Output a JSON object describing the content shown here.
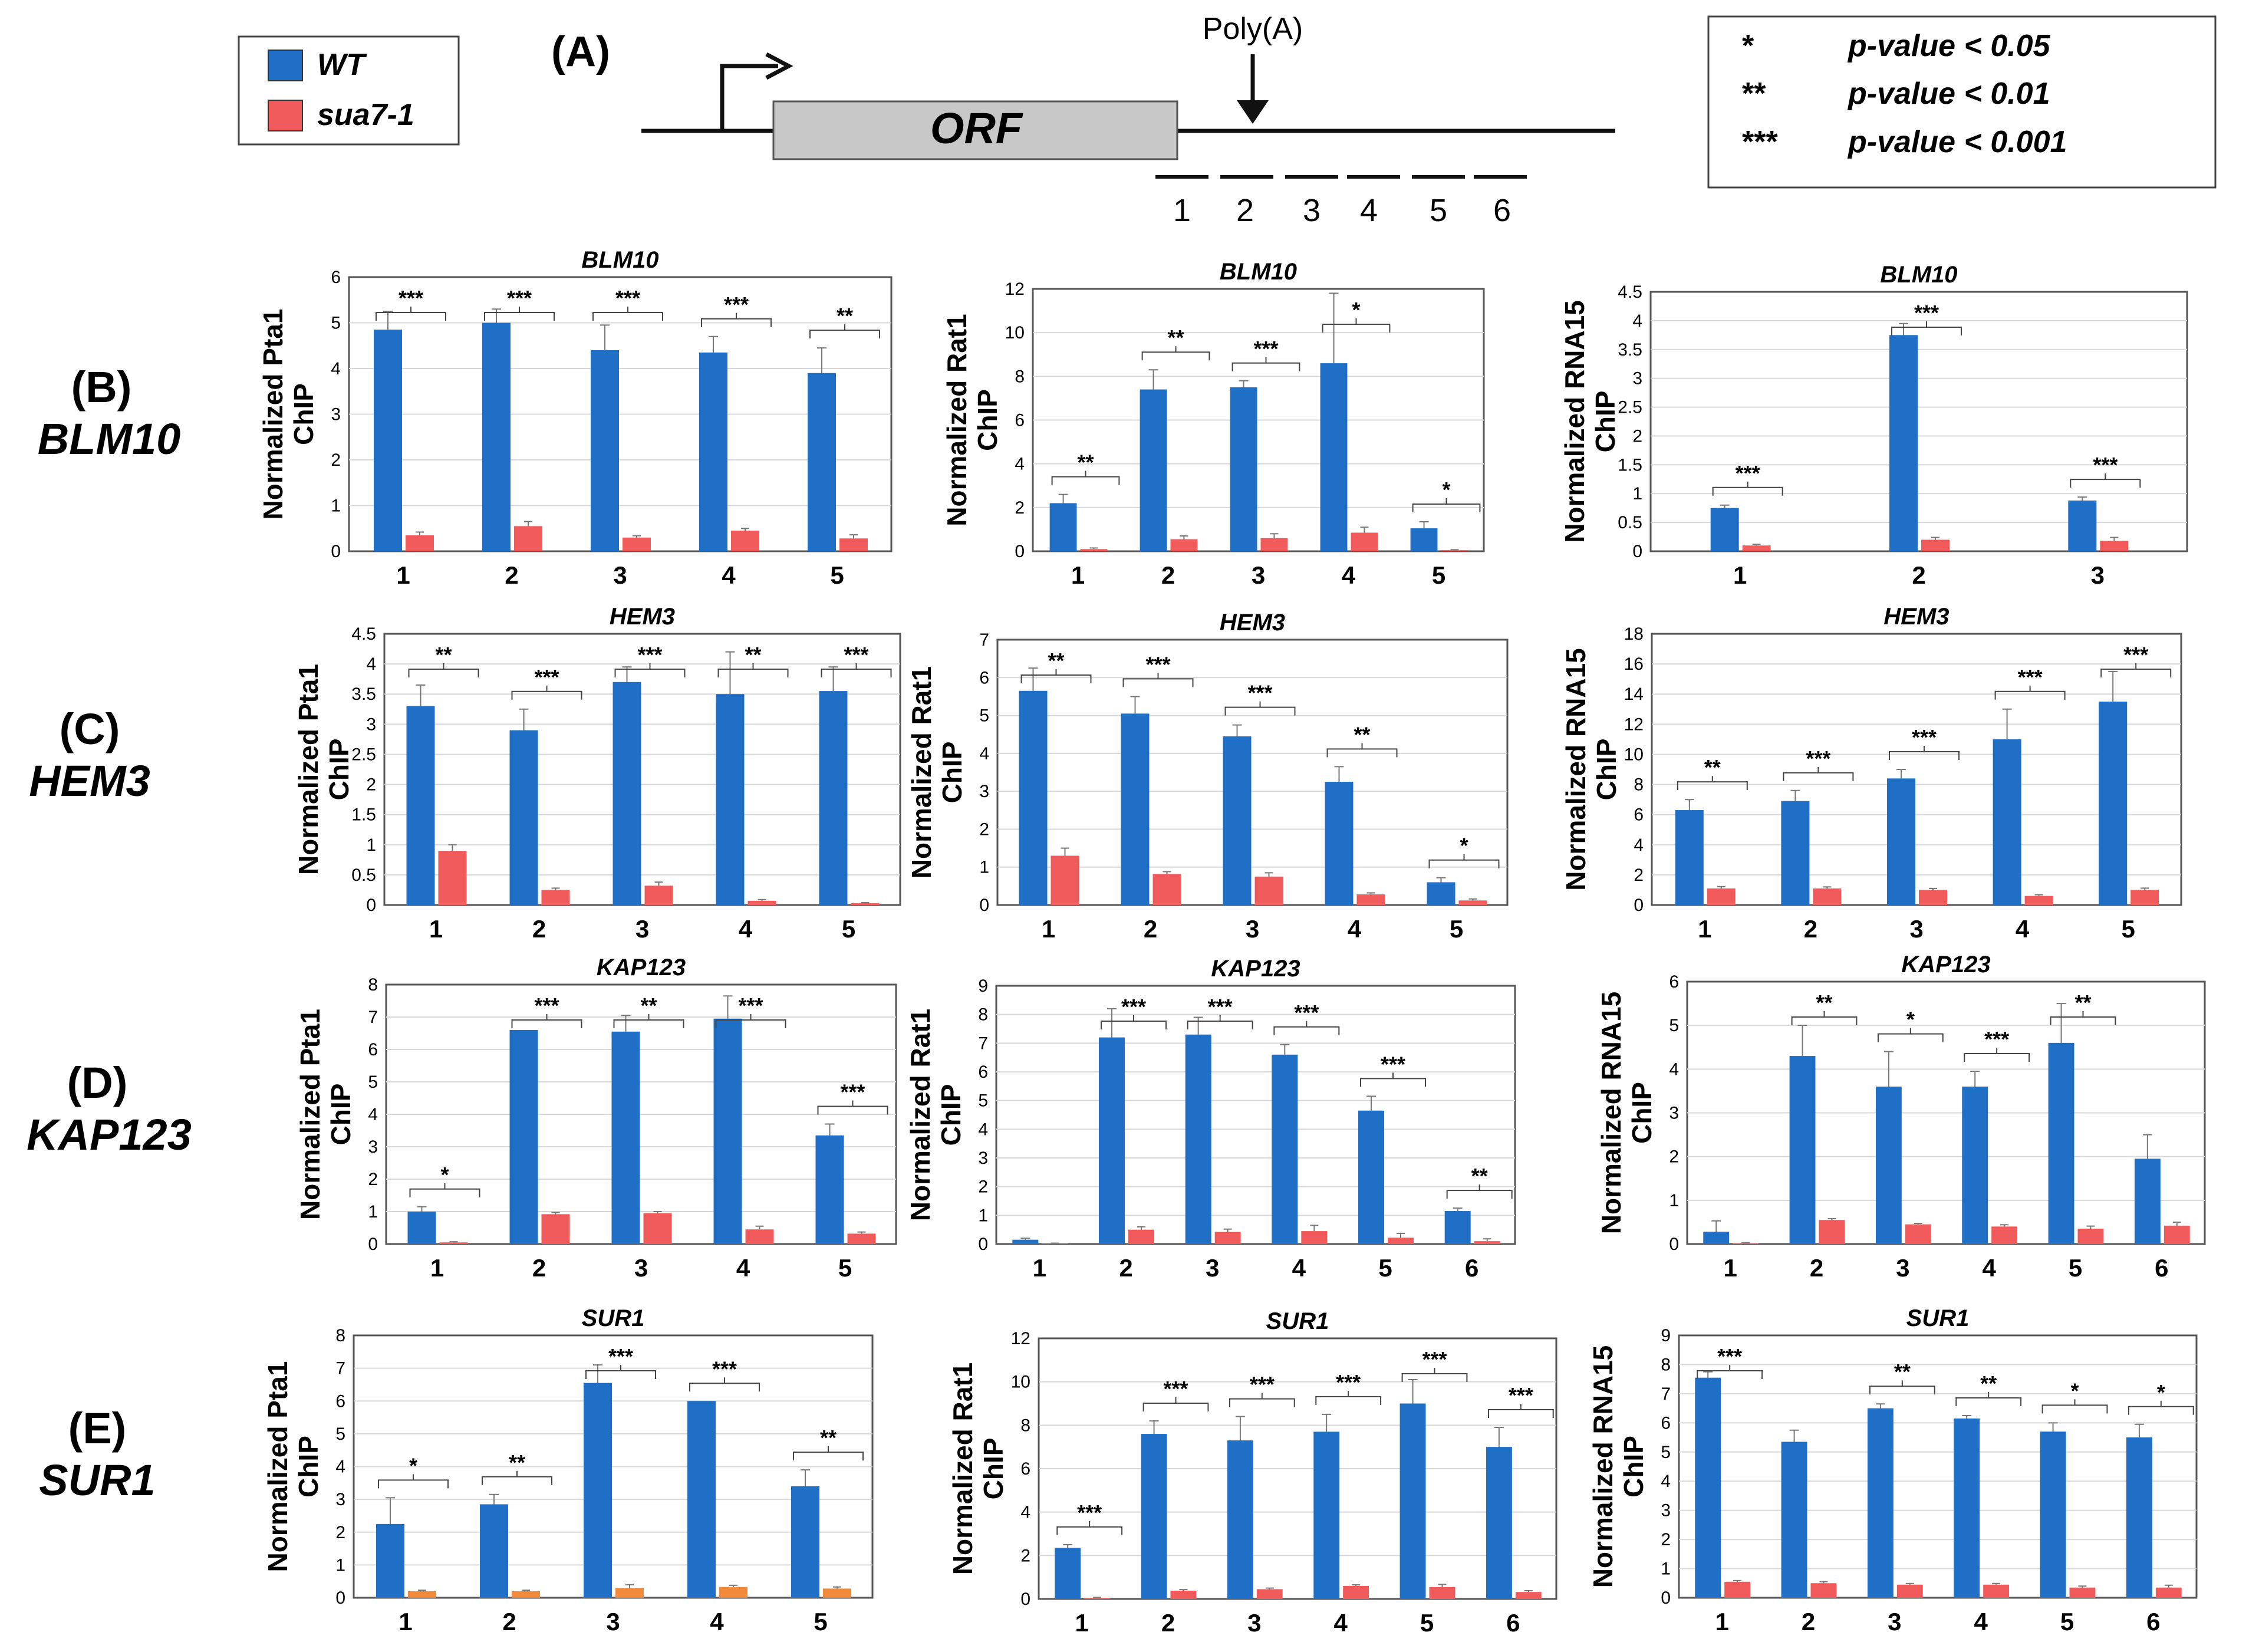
{
  "figure": {
    "panel_a_label": "(A)",
    "orf_label": "ORF",
    "polya_label": "Poly(A)",
    "regions": [
      "1",
      "2",
      "3",
      "4",
      "5",
      "6"
    ]
  },
  "legend": {
    "items": [
      {
        "label": "WT",
        "color": "#1f6fc6"
      },
      {
        "label": "sua7-1",
        "color": "#f05a5a"
      }
    ]
  },
  "pvalue_key": {
    "rows": [
      {
        "stars": "*",
        "text": "p-value < 0.05"
      },
      {
        "stars": "**",
        "text": "p-value < 0.01"
      },
      {
        "stars": "***",
        "text": "p-value < 0.001"
      }
    ]
  },
  "rows": [
    {
      "panel": "(B)",
      "gene": "BLM10"
    },
    {
      "panel": "(C)",
      "gene": "HEM3"
    },
    {
      "panel": "(D)",
      "gene": "KAP123"
    },
    {
      "panel": "(E)",
      "gene": "SUR1"
    }
  ],
  "colors": {
    "wt": "#1f6fc6",
    "mut": "#f05a5a",
    "mut_sur1_pta1": "#f08a3a",
    "grid": "#d8d8d8"
  },
  "chart_data": [
    {
      "type": "bar",
      "title": "BLM10",
      "ylabel": [
        "Normalized Pta1",
        "ChIP"
      ],
      "categories": [
        "1",
        "2",
        "3",
        "4",
        "5"
      ],
      "ylim": [
        0,
        6
      ],
      "yticks": [
        "0",
        "1",
        "2",
        "3",
        "4",
        "5",
        "6"
      ],
      "series": [
        {
          "name": "WT",
          "values": [
            4.85,
            5.0,
            4.4,
            4.35,
            3.9
          ],
          "errors": [
            0.4,
            0.3,
            0.55,
            0.35,
            0.55
          ]
        },
        {
          "name": "sua7-1",
          "values": [
            0.35,
            0.55,
            0.3,
            0.45,
            0.28
          ],
          "errors": [
            0.07,
            0.1,
            0.04,
            0.05,
            0.08
          ]
        }
      ],
      "significance": [
        "***",
        "***",
        "***",
        "***",
        "**"
      ]
    },
    {
      "type": "bar",
      "title": "BLM10",
      "ylabel": [
        "Normalized Rat1",
        "ChIP"
      ],
      "categories": [
        "1",
        "2",
        "3",
        "4",
        "5"
      ],
      "ylim": [
        0,
        12
      ],
      "yticks": [
        "0",
        "2",
        "4",
        "6",
        "8",
        "10",
        "12"
      ],
      "series": [
        {
          "name": "WT",
          "values": [
            2.2,
            7.4,
            7.5,
            8.6,
            1.05
          ],
          "errors": [
            0.4,
            0.9,
            0.3,
            3.2,
            0.3
          ]
        },
        {
          "name": "sua7-1",
          "values": [
            0.1,
            0.55,
            0.6,
            0.85,
            0.05
          ],
          "errors": [
            0.05,
            0.15,
            0.2,
            0.25,
            0.02
          ]
        }
      ],
      "significance": [
        "**",
        "**",
        "***",
        "*",
        "*"
      ]
    },
    {
      "type": "bar",
      "title": "BLM10",
      "ylabel": [
        "Normalized RNA15",
        "ChIP"
      ],
      "categories": [
        "1",
        "2",
        "3"
      ],
      "ylim": [
        0,
        4.5
      ],
      "yticks": [
        "0",
        "0.5",
        "1",
        "1.5",
        "2",
        "2.5",
        "3",
        "3.5",
        "4",
        "4.5"
      ],
      "series": [
        {
          "name": "WT",
          "values": [
            0.75,
            3.75,
            0.88
          ],
          "errors": [
            0.05,
            0.2,
            0.06
          ]
        },
        {
          "name": "sua7-1",
          "values": [
            0.1,
            0.2,
            0.18
          ],
          "errors": [
            0.02,
            0.04,
            0.06
          ]
        }
      ],
      "significance": [
        "***",
        "***",
        "***"
      ]
    },
    {
      "type": "bar",
      "title": "HEM3",
      "ylabel": [
        "Normalized Pta1",
        "ChIP"
      ],
      "categories": [
        "1",
        "2",
        "3",
        "4",
        "5"
      ],
      "ylim": [
        0,
        4.5
      ],
      "yticks": [
        "0",
        "0.5",
        "1",
        "1.5",
        "2",
        "2.5",
        "3",
        "3.5",
        "4",
        "4.5"
      ],
      "series": [
        {
          "name": "WT",
          "values": [
            3.3,
            2.9,
            3.7,
            3.5,
            3.55
          ],
          "errors": [
            0.35,
            0.35,
            0.25,
            0.7,
            0.4
          ]
        },
        {
          "name": "sua7-1",
          "values": [
            0.9,
            0.25,
            0.32,
            0.07,
            0.03
          ],
          "errors": [
            0.1,
            0.03,
            0.06,
            0.02,
            0.01
          ]
        }
      ],
      "significance": [
        "**",
        "***",
        "***",
        "**",
        "***"
      ]
    },
    {
      "type": "bar",
      "title": "HEM3",
      "ylabel": [
        "Normalized Rat1",
        "ChIP"
      ],
      "categories": [
        "1",
        "2",
        "3",
        "4",
        "5"
      ],
      "ylim": [
        0,
        7
      ],
      "yticks": [
        "0",
        "1",
        "2",
        "3",
        "4",
        "5",
        "6",
        "7"
      ],
      "series": [
        {
          "name": "WT",
          "values": [
            5.65,
            5.05,
            4.45,
            3.25,
            0.6
          ],
          "errors": [
            0.6,
            0.45,
            0.3,
            0.4,
            0.12
          ]
        },
        {
          "name": "sua7-1",
          "values": [
            1.3,
            0.82,
            0.75,
            0.28,
            0.12
          ],
          "errors": [
            0.2,
            0.06,
            0.1,
            0.04,
            0.04
          ]
        }
      ],
      "significance": [
        "**",
        "***",
        "***",
        "**",
        "*"
      ]
    },
    {
      "type": "bar",
      "title": "HEM3",
      "ylabel": [
        "Normalized RNA15",
        "ChIP"
      ],
      "categories": [
        "1",
        "2",
        "3",
        "4",
        "5"
      ],
      "ylim": [
        0,
        18
      ],
      "yticks": [
        "0",
        "2",
        "4",
        "6",
        "8",
        "10",
        "12",
        "14",
        "16",
        "18"
      ],
      "series": [
        {
          "name": "WT",
          "values": [
            6.3,
            6.9,
            8.4,
            11.0,
            13.5
          ],
          "errors": [
            0.7,
            0.7,
            0.6,
            2.0,
            2.0
          ]
        },
        {
          "name": "sua7-1",
          "values": [
            1.1,
            1.1,
            1.0,
            0.6,
            1.0
          ],
          "errors": [
            0.12,
            0.1,
            0.1,
            0.08,
            0.12
          ]
        }
      ],
      "significance": [
        "**",
        "***",
        "***",
        "***",
        "***"
      ]
    },
    {
      "type": "bar",
      "title": "KAP123",
      "ylabel": [
        "Normalized Pta1",
        "ChIP"
      ],
      "categories": [
        "1",
        "2",
        "3",
        "4",
        "5"
      ],
      "ylim": [
        0,
        8
      ],
      "yticks": [
        "0",
        "1",
        "2",
        "3",
        "4",
        "5",
        "6",
        "7",
        "8"
      ],
      "series": [
        {
          "name": "WT",
          "values": [
            1.0,
            6.6,
            6.55,
            6.95,
            3.35
          ],
          "errors": [
            0.15,
            0.0,
            0.5,
            0.7,
            0.35
          ]
        },
        {
          "name": "sua7-1",
          "values": [
            0.05,
            0.92,
            0.95,
            0.45,
            0.32
          ],
          "errors": [
            0.02,
            0.05,
            0.05,
            0.1,
            0.05
          ]
        }
      ],
      "significance": [
        "*",
        "***",
        "**",
        "***",
        "***"
      ]
    },
    {
      "type": "bar",
      "title": "KAP123",
      "ylabel": [
        "Normalized Rat1",
        "ChIP"
      ],
      "categories": [
        "1",
        "2",
        "3",
        "4",
        "5",
        "6"
      ],
      "ylim": [
        0,
        9
      ],
      "yticks": [
        "0",
        "1",
        "2",
        "3",
        "4",
        "5",
        "6",
        "7",
        "8",
        "9"
      ],
      "series": [
        {
          "name": "WT",
          "values": [
            0.15,
            7.2,
            7.3,
            6.6,
            4.65,
            1.15
          ],
          "errors": [
            0.05,
            1.0,
            0.6,
            0.35,
            0.5,
            0.1
          ]
        },
        {
          "name": "sua7-1",
          "values": [
            0.02,
            0.5,
            0.42,
            0.45,
            0.22,
            0.1
          ],
          "errors": [
            0.01,
            0.1,
            0.1,
            0.2,
            0.15,
            0.08
          ]
        }
      ],
      "significance": [
        "",
        "***",
        "***",
        "***",
        "***",
        "**"
      ]
    },
    {
      "type": "bar",
      "title": "KAP123",
      "ylabel": [
        "Normalized RNA15",
        "ChIP"
      ],
      "categories": [
        "1",
        "2",
        "3",
        "4",
        "5",
        "6"
      ],
      "ylim": [
        0,
        6
      ],
      "yticks": [
        "0",
        "1",
        "2",
        "3",
        "4",
        "5",
        "6"
      ],
      "series": [
        {
          "name": "WT",
          "values": [
            0.28,
            4.3,
            3.6,
            3.6,
            4.6,
            1.95
          ],
          "errors": [
            0.25,
            0.7,
            0.8,
            0.35,
            0.9,
            0.55
          ]
        },
        {
          "name": "sua7-1",
          "values": [
            0.02,
            0.55,
            0.45,
            0.4,
            0.35,
            0.42
          ],
          "errors": [
            0.01,
            0.03,
            0.02,
            0.04,
            0.06,
            0.08
          ]
        }
      ],
      "significance": [
        "",
        "**",
        "*",
        "***",
        "**",
        ""
      ]
    },
    {
      "type": "bar",
      "title": "SUR1",
      "ylabel": [
        "Normalized Pta1",
        "ChIP"
      ],
      "categories": [
        "1",
        "2",
        "3",
        "4",
        "5"
      ],
      "ylim": [
        0,
        8
      ],
      "yticks": [
        "0",
        "1",
        "2",
        "3",
        "4",
        "5",
        "6",
        "7",
        "8"
      ],
      "series": [
        {
          "name": "WT",
          "values": [
            2.25,
            2.85,
            6.55,
            6.0,
            3.4
          ],
          "errors": [
            0.8,
            0.3,
            0.55,
            0.0,
            0.5
          ]
        },
        {
          "name": "sua7-1",
          "values": [
            0.2,
            0.2,
            0.3,
            0.33,
            0.28
          ],
          "errors": [
            0.03,
            0.03,
            0.1,
            0.05,
            0.05
          ]
        }
      ],
      "significance": [
        "*",
        "**",
        "***",
        "***",
        "**"
      ]
    },
    {
      "type": "bar",
      "title": "SUR1",
      "ylabel": [
        "Normalized Rat1",
        "ChIP"
      ],
      "categories": [
        "1",
        "2",
        "3",
        "4",
        "5",
        "6"
      ],
      "ylim": [
        0,
        12
      ],
      "yticks": [
        "0",
        "2",
        "4",
        "6",
        "8",
        "10",
        "12"
      ],
      "series": [
        {
          "name": "WT",
          "values": [
            2.35,
            7.6,
            7.3,
            7.7,
            9.0,
            7.0
          ],
          "errors": [
            0.15,
            0.6,
            1.1,
            0.8,
            1.1,
            0.9
          ]
        },
        {
          "name": "sua7-1",
          "values": [
            0.05,
            0.38,
            0.45,
            0.6,
            0.55,
            0.32
          ],
          "errors": [
            0.02,
            0.05,
            0.05,
            0.05,
            0.12,
            0.06
          ]
        }
      ],
      "significance": [
        "***",
        "***",
        "***",
        "***",
        "***",
        "***"
      ]
    },
    {
      "type": "bar",
      "title": "SUR1",
      "ylabel": [
        "Normalized RNA15",
        "ChIP"
      ],
      "categories": [
        "1",
        "2",
        "3",
        "4",
        "5",
        "6"
      ],
      "ylim": [
        0,
        9
      ],
      "yticks": [
        "0",
        "1",
        "2",
        "3",
        "4",
        "5",
        "6",
        "7",
        "8",
        "9"
      ],
      "series": [
        {
          "name": "WT",
          "values": [
            7.55,
            5.35,
            6.5,
            6.15,
            5.7,
            5.5
          ],
          "errors": [
            0.2,
            0.4,
            0.15,
            0.1,
            0.3,
            0.45
          ]
        },
        {
          "name": "sua7-1",
          "values": [
            0.55,
            0.5,
            0.45,
            0.45,
            0.35,
            0.35
          ],
          "errors": [
            0.04,
            0.05,
            0.04,
            0.04,
            0.05,
            0.08
          ]
        }
      ],
      "significance": [
        "***",
        "",
        "**",
        "**",
        "*",
        "*"
      ]
    }
  ]
}
